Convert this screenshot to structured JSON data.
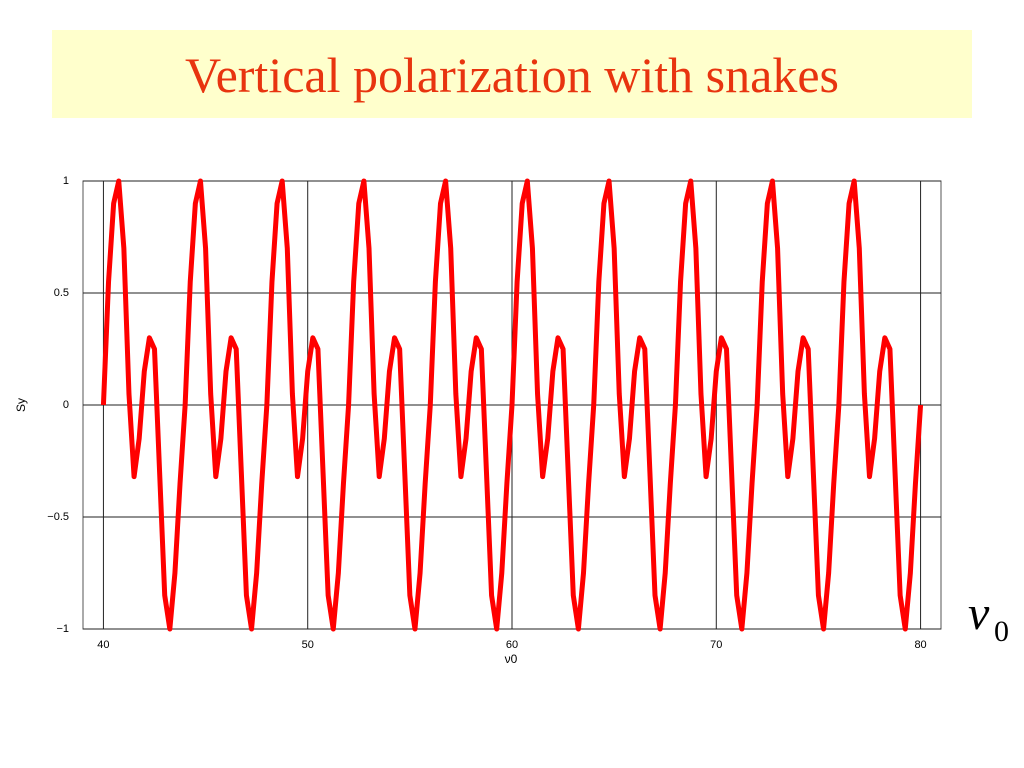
{
  "title": "Vertical polarization with snakes",
  "chart_data": {
    "type": "line",
    "ylabel": "Sy",
    "xlabel": "ν0",
    "annotation_symbol": "ν",
    "annotation_subscript": "0",
    "xlim": [
      39,
      81
    ],
    "ylim": [
      -1,
      1
    ],
    "xticks": [
      40,
      50,
      60,
      70,
      80
    ],
    "yticks": [
      {
        "value": -1,
        "label": "−1"
      },
      {
        "value": -0.5,
        "label": "−0.5"
      },
      0,
      0.5,
      1
    ],
    "grid": true,
    "x": [
      40,
      40.25,
      40.5,
      40.75,
      41,
      41.25,
      41.5,
      41.75,
      42,
      42.25,
      42.5,
      42.75,
      43,
      43.25,
      43.5,
      43.75,
      44,
      44.25,
      44.5,
      44.75,
      45,
      45.25,
      45.5,
      45.75,
      46,
      46.25,
      46.5,
      46.75,
      47,
      47.25,
      47.5,
      47.75,
      48,
      48.25,
      48.5,
      48.75,
      49,
      49.25,
      49.5,
      49.75,
      50,
      50.25,
      50.5,
      50.75,
      51,
      51.25,
      51.5,
      51.75,
      52,
      52.25,
      52.5,
      52.75,
      53,
      53.25,
      53.5,
      53.75,
      54,
      54.25,
      54.5,
      54.75,
      55,
      55.25,
      55.5,
      55.75,
      56,
      56.25,
      56.5,
      56.75,
      57,
      57.25,
      57.5,
      57.75,
      58,
      58.25,
      58.5,
      58.75,
      59,
      59.25,
      59.5,
      59.75,
      60,
      60.25,
      60.5,
      60.75,
      61,
      61.25,
      61.5,
      61.75,
      62,
      62.25,
      62.5,
      62.75,
      63,
      63.25,
      63.5,
      63.75,
      64,
      64.25,
      64.5,
      64.75,
      65,
      65.25,
      65.5,
      65.75,
      66,
      66.25,
      66.5,
      66.75,
      67,
      67.25,
      67.5,
      67.75,
      68,
      68.25,
      68.5,
      68.75,
      69,
      69.25,
      69.5,
      69.75,
      70,
      70.25,
      70.5,
      70.75,
      71,
      71.25,
      71.5,
      71.75,
      72,
      72.25,
      72.5,
      72.75,
      73,
      73.25,
      73.5,
      73.75,
      74,
      74.25,
      74.5,
      74.75,
      75,
      75.25,
      75.5,
      75.75,
      76,
      76.25,
      76.5,
      76.75,
      77,
      77.25,
      77.5,
      77.75,
      78,
      78.25,
      78.5,
      78.75,
      79,
      79.25,
      79.5,
      79.75,
      80
    ],
    "series": [
      {
        "color": "#ff0000",
        "values": [
          0,
          0.55,
          0.9,
          1,
          0.7,
          0.05,
          -0.32,
          -0.15,
          0.15,
          0.3,
          0.25,
          -0.3,
          -0.85,
          -1,
          -0.75,
          -0.35,
          0,
          0.55,
          0.9,
          1,
          0.7,
          0.05,
          -0.32,
          -0.15,
          0.15,
          0.3,
          0.25,
          -0.3,
          -0.85,
          -1,
          -0.75,
          -0.35,
          0,
          0.55,
          0.9,
          1,
          0.7,
          0.05,
          -0.32,
          -0.15,
          0.15,
          0.3,
          0.25,
          -0.3,
          -0.85,
          -1,
          -0.75,
          -0.35,
          0,
          0.55,
          0.9,
          1,
          0.7,
          0.05,
          -0.32,
          -0.15,
          0.15,
          0.3,
          0.25,
          -0.3,
          -0.85,
          -1,
          -0.75,
          -0.35,
          0,
          0.55,
          0.9,
          1,
          0.7,
          0.05,
          -0.32,
          -0.15,
          0.15,
          0.3,
          0.25,
          -0.3,
          -0.85,
          -1,
          -0.75,
          -0.35,
          0,
          0.55,
          0.9,
          1,
          0.7,
          0.05,
          -0.32,
          -0.15,
          0.15,
          0.3,
          0.25,
          -0.3,
          -0.85,
          -1,
          -0.75,
          -0.35,
          0,
          0.55,
          0.9,
          1,
          0.7,
          0.05,
          -0.32,
          -0.15,
          0.15,
          0.3,
          0.25,
          -0.3,
          -0.85,
          -1,
          -0.75,
          -0.35,
          0,
          0.55,
          0.9,
          1,
          0.7,
          0.05,
          -0.32,
          -0.15,
          0.15,
          0.3,
          0.25,
          -0.3,
          -0.85,
          -1,
          -0.75,
          -0.35,
          0,
          0.55,
          0.9,
          1,
          0.7,
          0.05,
          -0.32,
          -0.15,
          0.15,
          0.3,
          0.25,
          -0.3,
          -0.85,
          -1,
          -0.75,
          -0.35,
          0,
          0.55,
          0.9,
          1,
          0.7,
          0.05,
          -0.32,
          -0.15,
          0.15,
          0.3,
          0.25,
          -0.3,
          -0.85,
          -1,
          -0.75,
          -0.35,
          0
        ]
      }
    ]
  }
}
